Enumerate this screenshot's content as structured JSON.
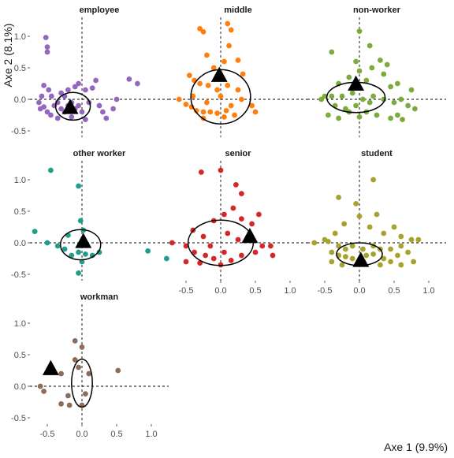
{
  "chart_data": {
    "type": "scatter",
    "xlabel": "Axe 1 (9.9%)",
    "ylabel": "Axe 2 (8.1%)",
    "xlim": [
      -0.75,
      1.25
    ],
    "ylim": [
      -0.6,
      1.3
    ],
    "x_ticks": [
      -0.5,
      0.0,
      0.5,
      1.0
    ],
    "x_tick_labels": [
      "-0.5",
      "0.0",
      "0.5",
      "1.0"
    ],
    "y_ticks": [
      -0.5,
      0.0,
      0.5,
      1.0
    ],
    "y_tick_labels": [
      "-0.5",
      "0.0",
      "0.5",
      "1.0"
    ],
    "grid": false,
    "reference_lines": "dashed lines at x = 0 and y = 0",
    "facets": [
      {
        "title": "employee",
        "color": "#9467bd",
        "centroid": [
          -0.17,
          -0.13
        ],
        "ellipse": {
          "cx": -0.13,
          "cy": -0.11,
          "rx": 0.25,
          "ry": 0.22
        },
        "points": [
          [
            -0.52,
            0.98
          ],
          [
            -0.5,
            0.83
          ],
          [
            -0.5,
            0.75
          ],
          [
            -0.55,
            0.22
          ],
          [
            -0.48,
            0.15
          ],
          [
            -0.44,
            0.05
          ],
          [
            -0.58,
            0.05
          ],
          [
            -0.62,
            -0.05
          ],
          [
            -0.55,
            -0.12
          ],
          [
            -0.5,
            -0.2
          ],
          [
            -0.45,
            -0.25
          ],
          [
            -0.4,
            -0.1
          ],
          [
            -0.35,
            -0.05
          ],
          [
            -0.3,
            -0.15
          ],
          [
            -0.25,
            -0.2
          ],
          [
            -0.2,
            -0.1
          ],
          [
            -0.15,
            -0.05
          ],
          [
            -0.1,
            -0.15
          ],
          [
            -0.05,
            -0.1
          ],
          [
            0.0,
            -0.2
          ],
          [
            -0.3,
            0.1
          ],
          [
            -0.25,
            0.05
          ],
          [
            -0.2,
            0.15
          ],
          [
            -0.1,
            0.2
          ],
          [
            0.05,
            0.15
          ],
          [
            0.15,
            0.18
          ],
          [
            0.25,
            -0.1
          ],
          [
            0.3,
            -0.2
          ],
          [
            0.35,
            -0.3
          ],
          [
            0.45,
            -0.15
          ],
          [
            0.5,
            0.0
          ],
          [
            0.68,
            0.32
          ],
          [
            0.8,
            0.25
          ],
          [
            -0.35,
            -0.3
          ],
          [
            -0.15,
            -0.28
          ],
          [
            0.05,
            -0.32
          ],
          [
            0.2,
            0.3
          ],
          [
            -0.05,
            0.25
          ],
          [
            -0.6,
            -0.15
          ],
          [
            0.1,
            -0.05
          ]
        ]
      },
      {
        "title": "middle",
        "color": "#ff7f0e",
        "centroid": [
          -0.02,
          0.38
        ],
        "ellipse": {
          "cx": 0.0,
          "cy": 0.04,
          "rx": 0.43,
          "ry": 0.43
        },
        "points": [
          [
            -0.3,
            1.12
          ],
          [
            -0.25,
            1.07
          ],
          [
            0.1,
            1.2
          ],
          [
            0.15,
            1.1
          ],
          [
            0.12,
            0.85
          ],
          [
            -0.2,
            0.7
          ],
          [
            0.05,
            0.6
          ],
          [
            0.25,
            0.62
          ],
          [
            -0.45,
            0.38
          ],
          [
            -0.38,
            0.3
          ],
          [
            -0.3,
            0.25
          ],
          [
            -0.18,
            0.22
          ],
          [
            -0.05,
            0.15
          ],
          [
            0.1,
            0.22
          ],
          [
            0.25,
            0.15
          ],
          [
            -0.6,
            0.0
          ],
          [
            -0.5,
            -0.08
          ],
          [
            -0.42,
            -0.12
          ],
          [
            -0.35,
            -0.18
          ],
          [
            -0.25,
            -0.2
          ],
          [
            -0.15,
            -0.2
          ],
          [
            -0.05,
            -0.22
          ],
          [
            0.08,
            -0.18
          ],
          [
            0.15,
            -0.1
          ],
          [
            0.3,
            0.0
          ],
          [
            0.45,
            -0.1
          ],
          [
            0.5,
            -0.2
          ],
          [
            -0.4,
            0.05
          ],
          [
            -0.2,
            -0.05
          ],
          [
            0.0,
            0.05
          ],
          [
            0.2,
            -0.25
          ],
          [
            -0.1,
            0.5
          ],
          [
            0.32,
            0.4
          ],
          [
            -0.25,
            -0.3
          ],
          [
            0.05,
            -0.28
          ]
        ]
      },
      {
        "title": "non-worker",
        "color": "#7bab3a",
        "centroid": [
          -0.05,
          0.24
        ],
        "ellipse": {
          "cx": -0.05,
          "cy": 0.03,
          "rx": 0.42,
          "ry": 0.24
        },
        "points": [
          [
            0.0,
            1.08
          ],
          [
            0.15,
            0.85
          ],
          [
            -0.4,
            0.75
          ],
          [
            0.3,
            0.62
          ],
          [
            0.18,
            0.5
          ],
          [
            0.0,
            0.45
          ],
          [
            0.35,
            0.4
          ],
          [
            -0.15,
            0.35
          ],
          [
            0.1,
            0.3
          ],
          [
            -0.3,
            0.25
          ],
          [
            0.45,
            0.2
          ],
          [
            0.55,
            0.25
          ],
          [
            -0.5,
            0.05
          ],
          [
            -0.55,
            0.0
          ],
          [
            -0.4,
            0.05
          ],
          [
            -0.25,
            0.05
          ],
          [
            -0.1,
            0.1
          ],
          [
            0.05,
            0.0
          ],
          [
            0.2,
            0.05
          ],
          [
            0.35,
            0.0
          ],
          [
            0.5,
            -0.05
          ],
          [
            0.6,
            0.0
          ],
          [
            0.7,
            -0.1
          ],
          [
            0.8,
            -0.15
          ],
          [
            -0.35,
            -0.1
          ],
          [
            -0.2,
            -0.15
          ],
          [
            -0.05,
            -0.1
          ],
          [
            0.1,
            -0.2
          ],
          [
            0.25,
            -0.25
          ],
          [
            0.45,
            -0.3
          ],
          [
            0.55,
            -0.25
          ],
          [
            -0.45,
            -0.25
          ],
          [
            -0.3,
            -0.3
          ],
          [
            -0.15,
            -0.2
          ],
          [
            0.0,
            -0.28
          ],
          [
            0.15,
            -0.05
          ],
          [
            0.75,
            0.15
          ],
          [
            0.4,
            0.55
          ],
          [
            -0.05,
            0.6
          ],
          [
            0.62,
            -0.32
          ]
        ]
      },
      {
        "title": "other worker",
        "color": "#1f9e89",
        "centroid": [
          0.02,
          0.02
        ],
        "ellipse": {
          "cx": -0.02,
          "cy": -0.03,
          "rx": 0.29,
          "ry": 0.24
        },
        "points": [
          [
            -0.45,
            1.15
          ],
          [
            -0.05,
            0.9
          ],
          [
            -0.02,
            0.35
          ],
          [
            0.02,
            0.2
          ],
          [
            -0.68,
            0.18
          ],
          [
            -0.5,
            0.0
          ],
          [
            -0.35,
            -0.05
          ],
          [
            -0.25,
            -0.1
          ],
          [
            -0.15,
            -0.2
          ],
          [
            -0.05,
            -0.15
          ],
          [
            0.05,
            -0.18
          ],
          [
            0.15,
            -0.2
          ],
          [
            0.25,
            -0.15
          ],
          [
            0.0,
            -0.3
          ],
          [
            -0.05,
            -0.48
          ],
          [
            0.95,
            -0.13
          ],
          [
            1.22,
            -0.25
          ],
          [
            -0.2,
            0.12
          ]
        ]
      },
      {
        "title": "senior",
        "color": "#d62728",
        "centroid": [
          0.42,
          0.1
        ],
        "ellipse": {
          "cx": 0.0,
          "cy": 0.0,
          "rx": 0.47,
          "ry": 0.36
        },
        "points": [
          [
            -0.28,
            1.12
          ],
          [
            0.0,
            1.15
          ],
          [
            0.22,
            0.92
          ],
          [
            0.3,
            0.78
          ],
          [
            0.18,
            0.55
          ],
          [
            0.05,
            0.45
          ],
          [
            -0.1,
            0.35
          ],
          [
            0.3,
            0.38
          ],
          [
            0.45,
            0.3
          ],
          [
            -0.4,
            0.2
          ],
          [
            -0.25,
            0.1
          ],
          [
            0.1,
            0.15
          ],
          [
            0.25,
            0.05
          ],
          [
            -0.7,
            0.0
          ],
          [
            -0.5,
            -0.05
          ],
          [
            -0.38,
            -0.15
          ],
          [
            -0.22,
            -0.2
          ],
          [
            -0.1,
            -0.25
          ],
          [
            0.05,
            -0.15
          ],
          [
            0.15,
            -0.28
          ],
          [
            0.3,
            -0.2
          ],
          [
            0.5,
            -0.15
          ],
          [
            0.6,
            -0.05
          ],
          [
            0.72,
            -0.05
          ],
          [
            0.75,
            -0.2
          ],
          [
            -0.5,
            -0.3
          ],
          [
            -0.3,
            -0.32
          ],
          [
            0.0,
            -0.35
          ],
          [
            -0.15,
            -0.05
          ],
          [
            0.55,
            0.45
          ]
        ]
      },
      {
        "title": "student",
        "color": "#a7a22b",
        "centroid": [
          0.02,
          -0.28
        ],
        "ellipse": {
          "cx": 0.0,
          "cy": -0.18,
          "rx": 0.33,
          "ry": 0.18
        },
        "points": [
          [
            0.2,
            1.0
          ],
          [
            -0.3,
            0.72
          ],
          [
            -0.05,
            0.62
          ],
          [
            0.0,
            0.42
          ],
          [
            0.25,
            0.45
          ],
          [
            -0.22,
            0.3
          ],
          [
            0.15,
            0.25
          ],
          [
            0.5,
            0.25
          ],
          [
            0.35,
            0.15
          ],
          [
            -0.35,
            0.15
          ],
          [
            -0.5,
            0.05
          ],
          [
            -0.65,
            0.0
          ],
          [
            -0.45,
            0.02
          ],
          [
            0.6,
            0.1
          ],
          [
            0.75,
            0.05
          ],
          [
            0.85,
            0.05
          ],
          [
            -0.3,
            -0.05
          ],
          [
            -0.2,
            -0.1
          ],
          [
            -0.1,
            -0.05
          ],
          [
            0.05,
            -0.1
          ],
          [
            0.2,
            -0.05
          ],
          [
            0.3,
            -0.1
          ],
          [
            -0.4,
            -0.15
          ],
          [
            -0.3,
            -0.2
          ],
          [
            -0.2,
            -0.22
          ],
          [
            -0.1,
            -0.25
          ],
          [
            0.1,
            -0.2
          ],
          [
            0.2,
            -0.18
          ],
          [
            0.35,
            -0.25
          ],
          [
            0.45,
            -0.1
          ],
          [
            0.55,
            -0.2
          ],
          [
            0.7,
            -0.15
          ],
          [
            0.78,
            -0.3
          ],
          [
            0.6,
            -0.35
          ],
          [
            0.45,
            -0.3
          ],
          [
            0.3,
            -0.35
          ],
          [
            -0.25,
            -0.35
          ],
          [
            -0.4,
            -0.3
          ],
          [
            0.6,
            -0.05
          ],
          [
            0.05,
            -0.3
          ]
        ]
      },
      {
        "title": "workman",
        "color": "#8c6d5a",
        "centroid": [
          -0.45,
          0.28
        ],
        "ellipse": {
          "cx": 0.0,
          "cy": 0.05,
          "rx": 0.15,
          "ry": 0.38
        },
        "points": [
          [
            -0.1,
            0.72
          ],
          [
            0.0,
            0.62
          ],
          [
            -0.1,
            0.42
          ],
          [
            -0.05,
            0.3
          ],
          [
            0.1,
            0.2
          ],
          [
            0.52,
            0.25
          ],
          [
            -0.3,
            0.2
          ],
          [
            -0.6,
            0.0
          ],
          [
            -0.55,
            -0.08
          ],
          [
            -0.2,
            -0.15
          ],
          [
            0.05,
            -0.12
          ],
          [
            -0.3,
            -0.28
          ],
          [
            -0.18,
            -0.3
          ],
          [
            0.0,
            -0.3
          ]
        ]
      }
    ]
  }
}
